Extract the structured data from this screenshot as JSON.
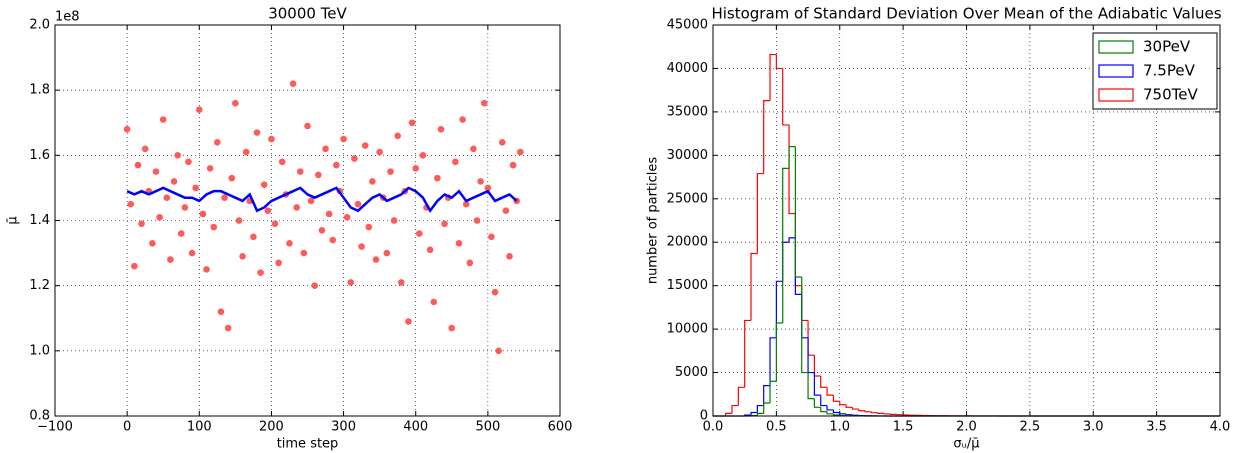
{
  "chart_data": [
    {
      "type": "scatter",
      "title": "30000 TeV",
      "xlabel": "time step",
      "ylabel": "μ̄",
      "y_offset_label": "1e8",
      "xlim": [
        -100,
        600
      ],
      "xticks": [
        {
          "value": -100,
          "label": "−100"
        },
        0,
        100,
        200,
        300,
        400,
        500,
        600
      ],
      "ylim": [
        0.8,
        2.0
      ],
      "yticks": [
        0.8,
        {
          "value": 1,
          "label": "1.0"
        },
        1.2,
        1.4,
        1.6,
        1.8,
        {
          "value": 2,
          "label": "2.0"
        }
      ],
      "grid": true,
      "color": "#ff5a5a",
      "x": [
        0,
        5,
        10,
        15,
        20,
        25,
        30,
        35,
        40,
        45,
        50,
        55,
        60,
        65,
        70,
        75,
        80,
        85,
        90,
        95,
        100,
        105,
        110,
        115,
        120,
        125,
        130,
        135,
        140,
        145,
        150,
        155,
        160,
        165,
        170,
        175,
        180,
        185,
        190,
        195,
        200,
        205,
        210,
        215,
        220,
        225,
        230,
        235,
        240,
        245,
        250,
        255,
        260,
        265,
        270,
        275,
        280,
        285,
        290,
        295,
        300,
        305,
        310,
        315,
        320,
        325,
        330,
        335,
        340,
        345,
        350,
        355,
        360,
        365,
        370,
        375,
        380,
        385,
        390,
        395,
        400,
        405,
        410,
        415,
        420,
        425,
        430,
        435,
        440,
        445,
        450,
        455,
        460,
        465,
        470,
        475,
        480,
        485,
        490,
        495,
        500,
        505,
        510,
        515,
        520,
        525,
        530,
        535,
        540,
        545
      ],
      "values": [
        1.68,
        1.45,
        1.26,
        1.57,
        1.39,
        1.62,
        1.49,
        1.33,
        1.55,
        1.41,
        1.71,
        1.47,
        1.28,
        1.52,
        1.6,
        1.36,
        1.44,
        1.58,
        1.3,
        1.5,
        1.74,
        1.42,
        1.25,
        1.56,
        1.38,
        1.64,
        1.12,
        1.47,
        1.07,
        1.53,
        1.76,
        1.4,
        1.29,
        1.61,
        1.46,
        1.35,
        1.67,
        1.24,
        1.51,
        1.43,
        1.65,
        1.39,
        1.27,
        1.58,
        1.48,
        1.33,
        1.82,
        1.44,
        1.55,
        1.3,
        1.69,
        1.46,
        1.2,
        1.54,
        1.37,
        1.62,
        1.42,
        1.34,
        1.57,
        1.49,
        1.65,
        1.41,
        1.21,
        1.59,
        1.45,
        1.32,
        1.63,
        1.38,
        1.52,
        1.28,
        1.61,
        1.47,
        1.3,
        1.55,
        1.4,
        1.66,
        1.21,
        1.49,
        1.09,
        1.7,
        1.56,
        1.36,
        1.6,
        1.44,
        1.31,
        1.15,
        1.53,
        1.68,
        1.39,
        1.47,
        1.07,
        1.58,
        1.33,
        1.71,
        1.45,
        1.27,
        1.62,
        1.4,
        1.52,
        1.76,
        1.5,
        1.35,
        1.18,
        1.0,
        1.64,
        1.43,
        1.29,
        1.57,
        1.46,
        1.61
      ],
      "line": {
        "color": "#0000ff",
        "x": [
          0,
          10,
          20,
          30,
          40,
          50,
          60,
          70,
          80,
          90,
          100,
          110,
          120,
          130,
          140,
          150,
          160,
          170,
          180,
          190,
          200,
          210,
          220,
          230,
          240,
          250,
          260,
          270,
          280,
          290,
          300,
          310,
          320,
          330,
          340,
          350,
          360,
          370,
          380,
          390,
          400,
          410,
          420,
          430,
          440,
          450,
          460,
          470,
          480,
          490,
          500,
          510,
          520,
          530,
          540
        ],
        "values": [
          1.49,
          1.48,
          1.49,
          1.48,
          1.49,
          1.5,
          1.49,
          1.48,
          1.47,
          1.47,
          1.46,
          1.48,
          1.49,
          1.49,
          1.48,
          1.47,
          1.46,
          1.48,
          1.43,
          1.44,
          1.46,
          1.47,
          1.48,
          1.49,
          1.5,
          1.48,
          1.47,
          1.48,
          1.49,
          1.5,
          1.47,
          1.44,
          1.43,
          1.45,
          1.47,
          1.48,
          1.46,
          1.47,
          1.48,
          1.5,
          1.49,
          1.47,
          1.43,
          1.46,
          1.48,
          1.47,
          1.49,
          1.46,
          1.47,
          1.48,
          1.49,
          1.46,
          1.47,
          1.48,
          1.46
        ]
      }
    },
    {
      "type": "histogram",
      "title": "Histogram of Standard Deviation Over Mean of the Adiabatic Values",
      "xlabel": "σᵤ/μ̄",
      "ylabel": "number of particles",
      "xlim": [
        0,
        4
      ],
      "xticks": [
        {
          "value": 0,
          "label": "0.0"
        },
        0.5,
        {
          "value": 1,
          "label": "1.0"
        },
        1.5,
        {
          "value": 2,
          "label": "2.0"
        },
        2.5,
        {
          "value": 3,
          "label": "3.0"
        },
        3.5,
        {
          "value": 4,
          "label": "4.0"
        }
      ],
      "ylim": [
        0,
        45000
      ],
      "yticks": [
        0,
        5000,
        10000,
        15000,
        20000,
        25000,
        30000,
        35000,
        40000,
        45000
      ],
      "grid": true,
      "legend": "upper right",
      "bins": [
        0,
        0.05,
        0.1,
        0.15,
        0.2,
        0.25,
        0.3,
        0.35,
        0.4,
        0.45,
        0.5,
        0.55,
        0.6,
        0.65,
        0.7,
        0.75,
        0.8,
        0.85,
        0.9,
        0.95,
        1,
        1.05,
        1.1,
        1.15,
        1.2,
        1.25,
        1.3,
        1.35,
        1.4,
        1.45,
        1.5,
        1.55,
        1.6,
        1.65,
        1.7,
        1.75,
        1.8,
        1.85,
        1.9,
        1.95,
        2,
        2.05,
        2.1,
        2.15,
        2.2,
        2.25,
        2.3,
        2.35,
        2.4,
        2.45,
        2.5,
        2.55,
        2.6,
        2.65,
        2.7,
        2.75,
        2.8,
        2.85,
        2.9,
        2.95,
        3,
        3.05,
        3.1,
        3.15,
        3.2,
        3.25,
        3.3,
        3.35,
        3.4,
        3.45,
        3.5,
        3.55,
        3.6,
        3.65,
        3.7,
        3.75,
        3.8,
        3.85,
        3.9,
        3.95,
        4
      ],
      "series": [
        {
          "name": "30PeV",
          "color": "#008000",
          "values": [
            0,
            0,
            0,
            0,
            0,
            0,
            50,
            300,
            1500,
            4000,
            10700,
            28500,
            31000,
            16000,
            5000,
            2000,
            1000,
            500,
            250,
            120,
            60,
            30,
            15,
            8,
            4,
            2,
            0,
            0,
            0,
            0,
            0,
            0,
            0,
            0,
            0,
            0,
            0,
            0,
            0,
            0,
            0,
            0,
            0,
            0,
            0,
            0,
            0,
            0,
            0,
            0,
            0,
            0,
            0,
            0,
            0,
            0,
            0,
            0,
            0,
            0,
            0,
            0,
            0,
            0,
            0,
            0,
            0,
            0,
            0,
            0,
            0,
            0,
            0,
            0,
            0,
            0,
            0,
            0,
            0,
            0
          ]
        },
        {
          "name": "7.5PeV",
          "color": "#0000ff",
          "values": [
            0,
            0,
            0,
            0,
            0,
            100,
            400,
            1200,
            3500,
            9000,
            15500,
            20000,
            20500,
            14000,
            9000,
            5000,
            2400,
            1200,
            700,
            400,
            250,
            150,
            90,
            50,
            30,
            15,
            8,
            4,
            2,
            0,
            0,
            0,
            0,
            0,
            0,
            0,
            0,
            0,
            0,
            0,
            0,
            0,
            0,
            0,
            0,
            0,
            0,
            0,
            0,
            0,
            0,
            0,
            0,
            0,
            0,
            0,
            0,
            0,
            0,
            0,
            0,
            0,
            0,
            0,
            0,
            0,
            0,
            0,
            0,
            0,
            0,
            0,
            0,
            0,
            0,
            0,
            0,
            0,
            0,
            0
          ]
        },
        {
          "name": "750TeV",
          "color": "#ff0000",
          "values": [
            0,
            0,
            300,
            1200,
            3300,
            11000,
            18700,
            27900,
            36300,
            41600,
            40000,
            33500,
            23300,
            15000,
            11000,
            7000,
            4600,
            3300,
            2400,
            1700,
            1300,
            1000,
            800,
            600,
            480,
            380,
            300,
            240,
            190,
            150,
            120,
            95,
            75,
            60,
            48,
            38,
            30,
            24,
            19,
            15,
            12,
            10,
            8,
            6,
            5,
            4,
            3,
            3,
            2,
            2,
            1,
            0,
            0,
            0,
            0,
            0,
            0,
            0,
            0,
            0,
            0,
            0,
            0,
            0,
            0,
            0,
            0,
            0,
            0,
            0,
            0,
            0,
            0,
            0,
            0,
            0,
            0,
            0,
            0,
            0
          ]
        }
      ]
    }
  ]
}
